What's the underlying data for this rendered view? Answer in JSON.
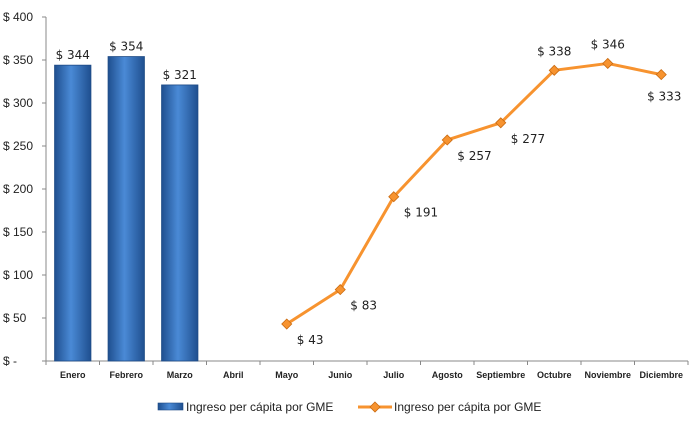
{
  "chart_data": {
    "type": "bar+line",
    "categories": [
      "Enero",
      "Febrero",
      "Marzo",
      "Abril",
      "Mayo",
      "Junio",
      "Julio",
      "Agosto",
      "Septiembre",
      "Octubre",
      "Noviembre",
      "Diciembre"
    ],
    "ylim": [
      0,
      400
    ],
    "yticks": [
      0,
      50,
      100,
      150,
      200,
      250,
      300,
      350,
      400
    ],
    "ytick_labels": [
      "$ -",
      "$ 50",
      "$ 100",
      "$ 150",
      "$ 200",
      "$ 250",
      "$ 300",
      "$ 350",
      "$ 400"
    ],
    "series": [
      {
        "name": "Ingreso per cápita por GME",
        "kind": "bar",
        "color": "#2f6db5",
        "values": [
          344,
          354,
          321,
          null,
          null,
          null,
          null,
          null,
          null,
          null,
          null,
          null
        ],
        "labels": [
          "$ 344",
          "$ 354",
          "$ 321",
          null,
          null,
          null,
          null,
          null,
          null,
          null,
          null,
          null
        ]
      },
      {
        "name": "Ingreso per cápita por GME",
        "kind": "line",
        "color": "#f7932f",
        "values": [
          null,
          null,
          null,
          null,
          43,
          83,
          191,
          257,
          277,
          338,
          346,
          333
        ],
        "labels": [
          null,
          null,
          null,
          null,
          "$ 43",
          "$ 83",
          "$ 191",
          "$ 257",
          "$ 277",
          "$ 338",
          "$ 346",
          "$ 333"
        ]
      }
    ],
    "grid": false,
    "legend": "bottom"
  }
}
